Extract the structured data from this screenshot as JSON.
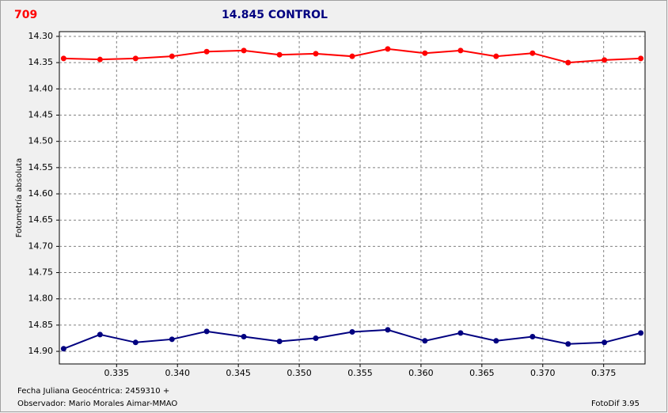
{
  "chart_data": {
    "type": "line",
    "y_label": "Fotometría absoluta",
    "x": [
      0.33065,
      0.33364,
      0.33656,
      0.33955,
      0.3424,
      0.34545,
      0.34838,
      0.35136,
      0.35435,
      0.35727,
      0.36032,
      0.36325,
      0.36617,
      0.36916,
      0.37208,
      0.37506,
      0.37805
    ],
    "series": [
      {
        "name": "709",
        "color": "#ff0000",
        "values": [
          14.342,
          14.344,
          14.342,
          14.338,
          14.329,
          14.327,
          14.335,
          14.333,
          14.338,
          14.324,
          14.332,
          14.327,
          14.338,
          14.332,
          14.35,
          14.345,
          14.342
        ]
      },
      {
        "name": "14.845 CONTROL",
        "color": "#000080",
        "values": [
          14.895,
          14.868,
          14.883,
          14.877,
          14.862,
          14.872,
          14.881,
          14.875,
          14.863,
          14.859,
          14.88,
          14.865,
          14.88,
          14.872,
          14.886,
          14.883,
          14.865
        ]
      }
    ],
    "xlim": [
      0.3303,
      0.3784
    ],
    "xticks": [
      0.335,
      {
        "value": 0.34,
        "label": "0.340"
      },
      0.345,
      {
        "value": 0.35,
        "label": "0.350"
      },
      0.355,
      {
        "value": 0.36,
        "label": "0.360"
      },
      0.365,
      {
        "value": 0.37,
        "label": "0.370"
      },
      0.375
    ],
    "ylim": [
      14.291,
      14.924
    ],
    "y_inverted": true,
    "yticks": [
      {
        "value": 14.3,
        "label": "14.30"
      },
      14.35,
      {
        "value": 14.4,
        "label": "14.40"
      },
      14.45,
      {
        "value": 14.5,
        "label": "14.50"
      },
      14.55,
      {
        "value": 14.6,
        "label": "14.60"
      },
      14.65,
      {
        "value": 14.7,
        "label": "14.70"
      },
      14.75,
      {
        "value": 14.8,
        "label": "14.80"
      },
      14.85,
      {
        "value": 14.9,
        "label": "14.90"
      }
    ],
    "grid": true,
    "footer": {
      "date": "Fecha Juliana Geocéntrica: 2459310 +",
      "observer": "Observador: Mario Morales Aimar-MMAO",
      "software": "FotoDif 3.95"
    }
  }
}
